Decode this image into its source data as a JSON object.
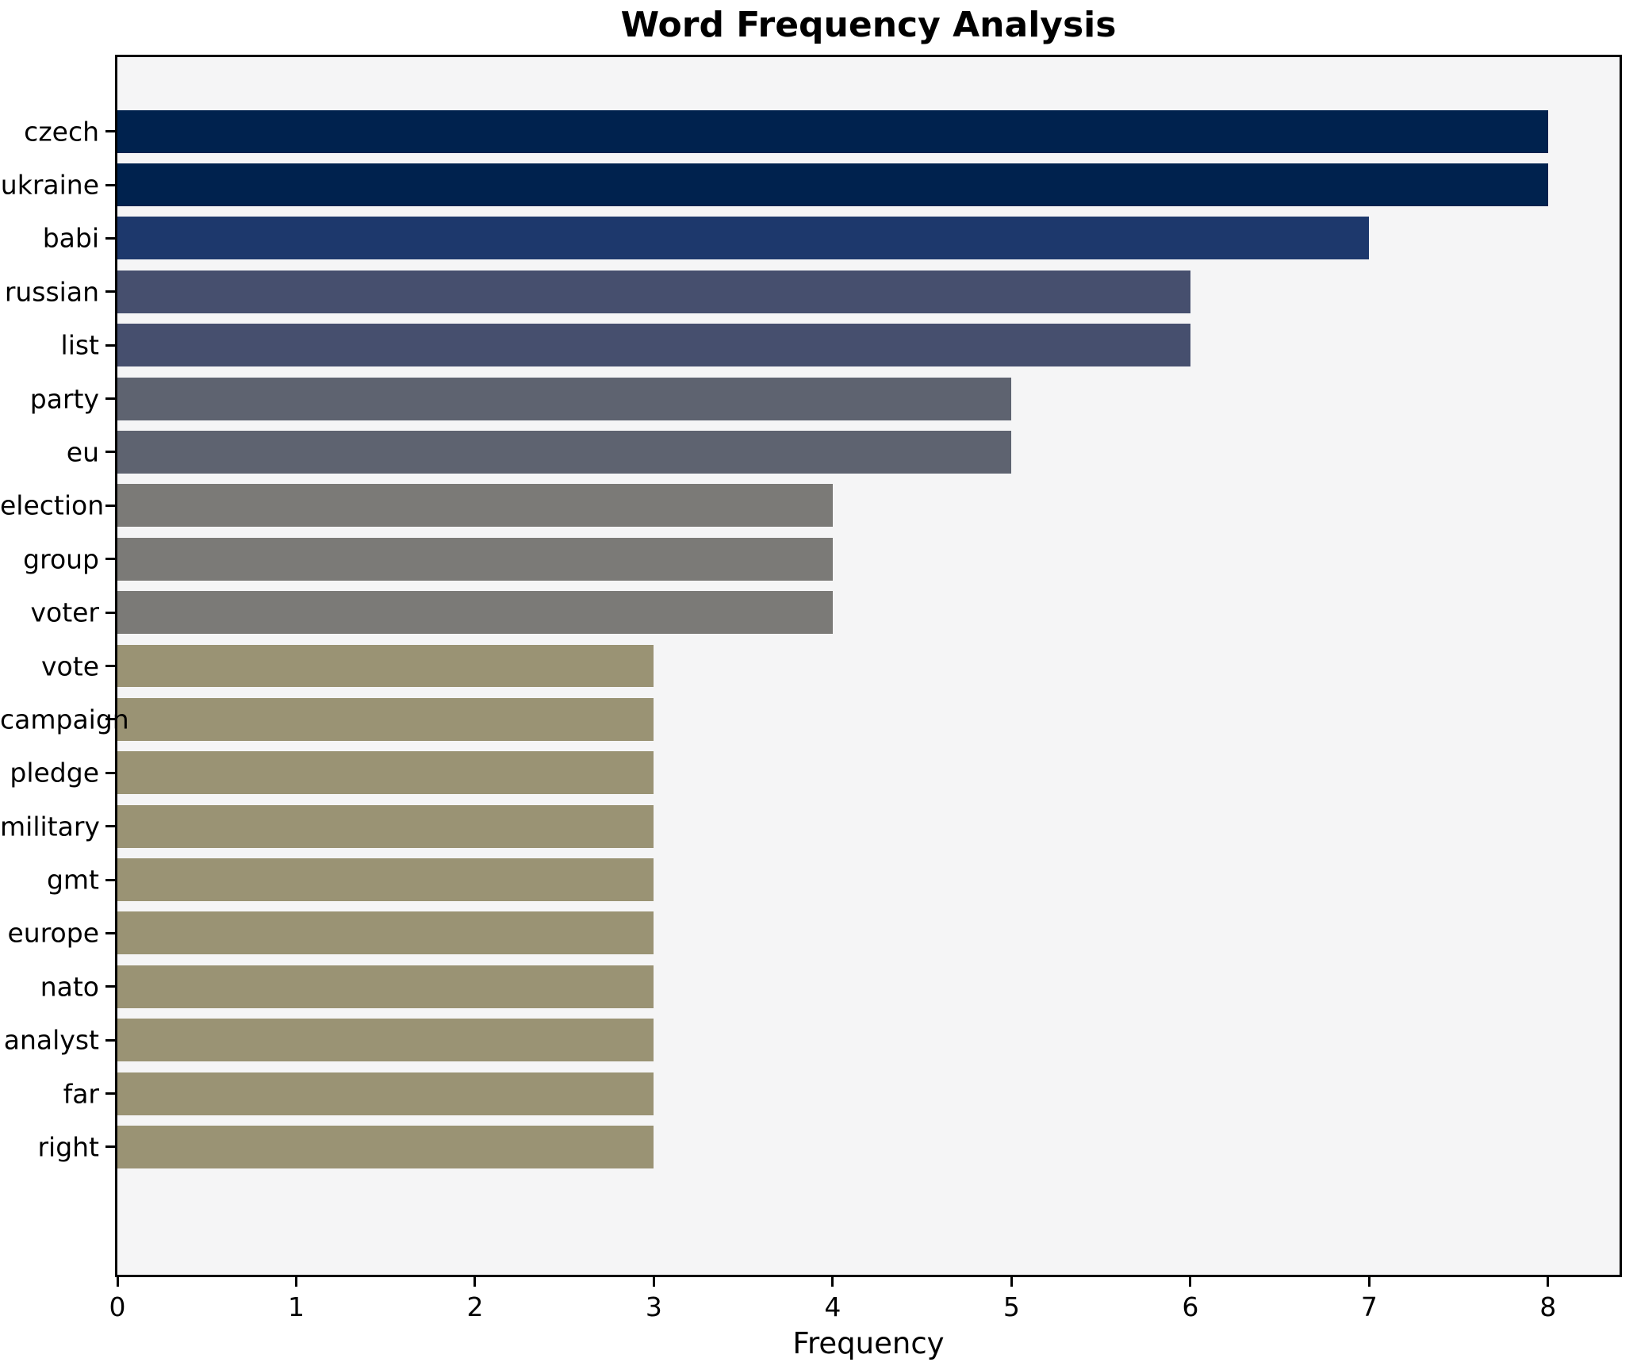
{
  "chart_data": {
    "type": "bar",
    "orientation": "horizontal",
    "title": "Word Frequency Analysis",
    "xlabel": "Frequency",
    "ylabel": "",
    "categories": [
      "czech",
      "ukraine",
      "babi",
      "russian",
      "list",
      "party",
      "eu",
      "election",
      "group",
      "voter",
      "vote",
      "campaign",
      "pledge",
      "military",
      "gmt",
      "europe",
      "nato",
      "analyst",
      "far",
      "right"
    ],
    "values": [
      8,
      8,
      7,
      6,
      6,
      5,
      5,
      4,
      4,
      4,
      3,
      3,
      3,
      3,
      3,
      3,
      3,
      3,
      3,
      3
    ],
    "bar_colors": [
      "#00224e",
      "#00224e",
      "#1d386c",
      "#464f6e",
      "#464f6e",
      "#5e6370",
      "#5e6370",
      "#7b7a77",
      "#7b7a77",
      "#7b7a77",
      "#9a9374",
      "#9a9374",
      "#9a9374",
      "#9a9374",
      "#9a9374",
      "#9a9374",
      "#9a9374",
      "#9a9374",
      "#9a9374",
      "#9a9374"
    ],
    "xticks": [
      0,
      1,
      2,
      3,
      4,
      5,
      6,
      7,
      8
    ],
    "xlim": [
      0,
      8.4
    ],
    "grid": false,
    "legend_position": "none",
    "plot_background": "#f5f5f6",
    "figure_background": "#ffffff",
    "spine_color": "#000000"
  }
}
